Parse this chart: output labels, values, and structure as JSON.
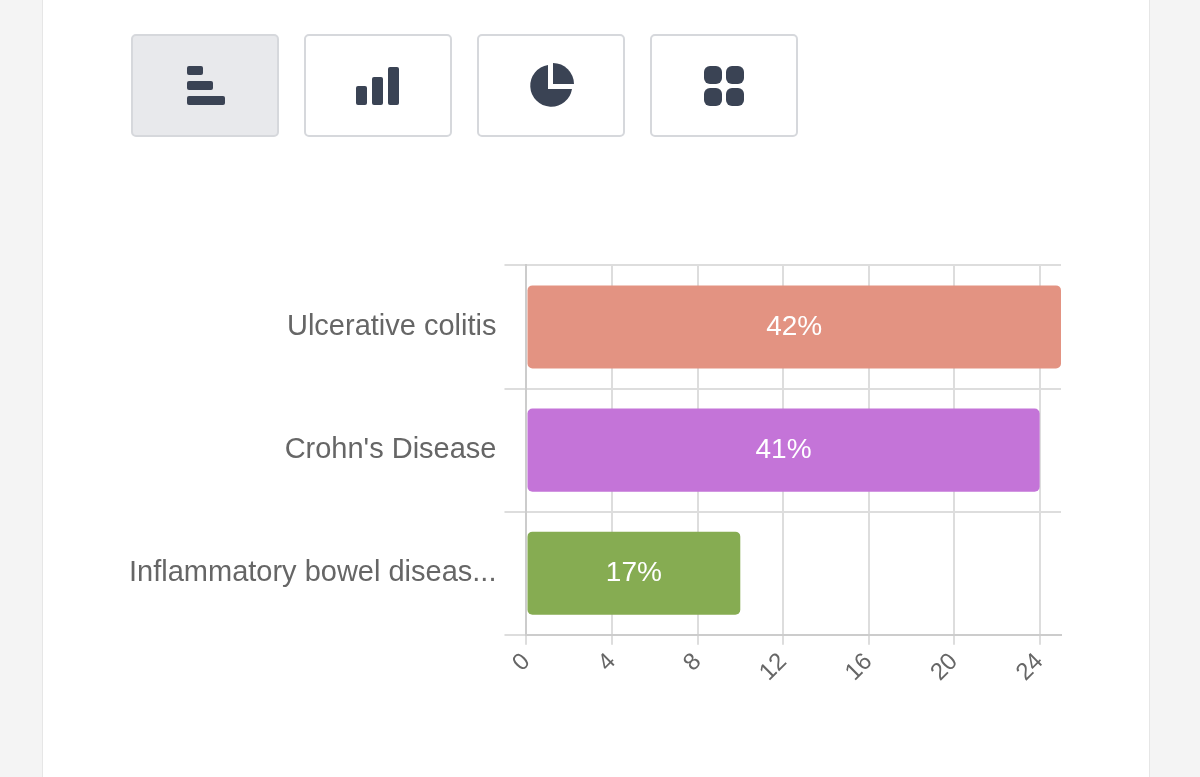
{
  "chart_data": {
    "type": "bar",
    "orientation": "horizontal",
    "categories": [
      "Ulcerative colitis",
      "Crohn's Disease",
      "Inflammatory bowel diseas..."
    ],
    "values": [
      25,
      24,
      10
    ],
    "colors": [
      "#e39382",
      "#c474d8",
      "#86ac52"
    ],
    "annotations": [
      "42%",
      "41%",
      "17%"
    ],
    "xlim": [
      0,
      25
    ],
    "xticks": [
      0,
      4,
      8,
      12,
      16,
      20,
      24
    ],
    "grid": true,
    "legend": false
  }
}
